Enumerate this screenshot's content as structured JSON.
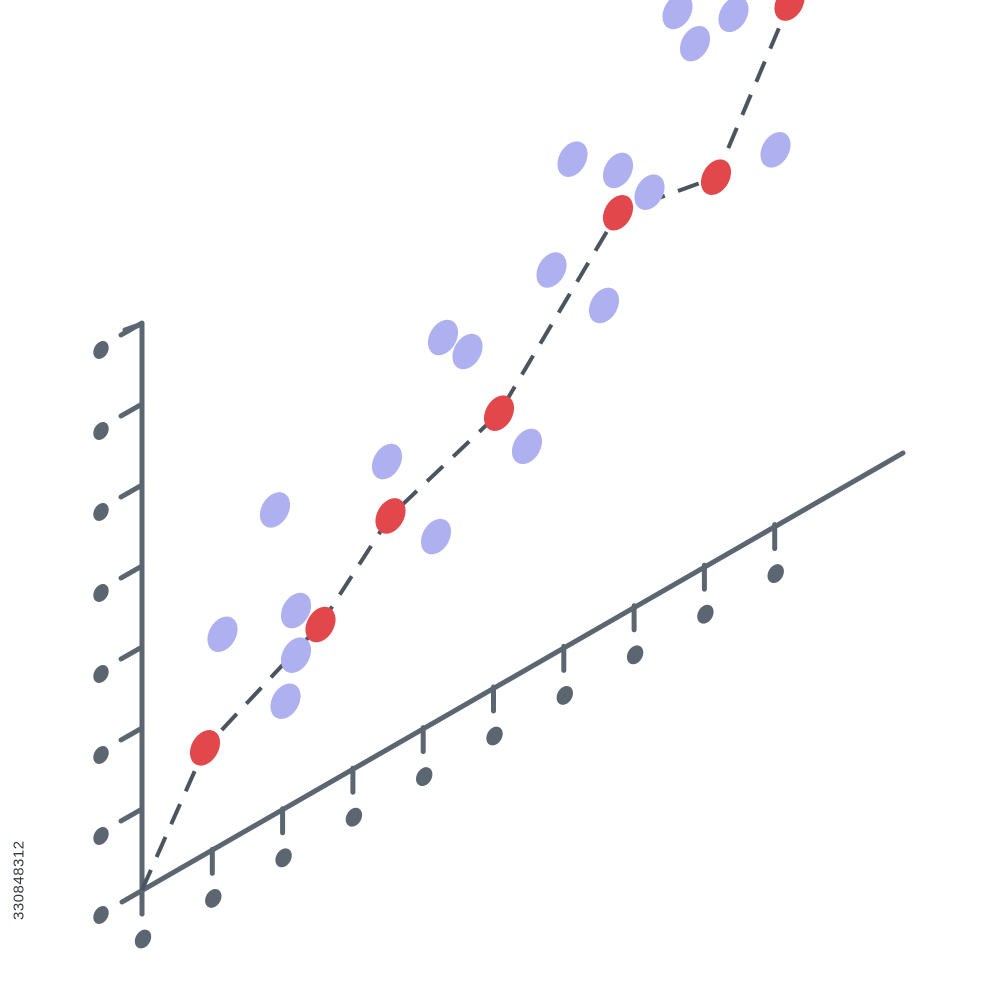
{
  "image": {
    "stock_id": "330848312",
    "colors": {
      "axis": "#5b6670",
      "background_point": "#aeb0f0",
      "highlight_point": "#e2484b",
      "dash_line": "#4a5560"
    }
  },
  "chart_data": {
    "type": "scatter",
    "style": "isometric",
    "title": "",
    "xlabel": "",
    "ylabel": "",
    "grid": false,
    "series": [
      {
        "role": "trend",
        "connected": "dashed",
        "points": [
          {
            "x": 0,
            "y": 0
          },
          {
            "x": 0.9,
            "y": 2.25
          },
          {
            "x": 2.55,
            "y": 3.45
          },
          {
            "x": 3.55,
            "y": 4.9
          },
          {
            "x": 5.1,
            "y": 5.75
          },
          {
            "x": 6.8,
            "y": 8.55
          },
          {
            "x": 8.2,
            "y": 8.1
          },
          {
            "x": 9.25,
            "y": 10.9
          }
        ]
      },
      {
        "role": "scatter",
        "connected": "none",
        "points": [
          {
            "x": 1.15,
            "y": 4.45
          },
          {
            "x": 1.9,
            "y": 6.45
          },
          {
            "x": 2.2,
            "y": 3.1
          },
          {
            "x": 2.05,
            "y": 2.25
          },
          {
            "x": 2.2,
            "y": 4.05
          },
          {
            "x": 3.5,
            "y": 6.1
          },
          {
            "x": 4.2,
            "y": 3.9
          },
          {
            "x": 4.3,
            "y": 8.05
          },
          {
            "x": 4.65,
            "y": 7.45
          },
          {
            "x": 5.5,
            "y": 4.7
          },
          {
            "x": 5.85,
            "y": 8.15
          },
          {
            "x": 6.15,
            "y": 10.25
          },
          {
            "x": 6.6,
            "y": 6.75
          },
          {
            "x": 6.8,
            "y": 9.45
          },
          {
            "x": 7.25,
            "y": 8.6
          },
          {
            "x": 7.65,
            "y": 12.1
          },
          {
            "x": 7.9,
            "y": 11.2
          },
          {
            "x": 8.45,
            "y": 11.35
          },
          {
            "x": 9.05,
            "y": 7.95
          }
        ]
      }
    ],
    "axes": {
      "x_ticks": 10,
      "y_ticks": 7
    }
  }
}
